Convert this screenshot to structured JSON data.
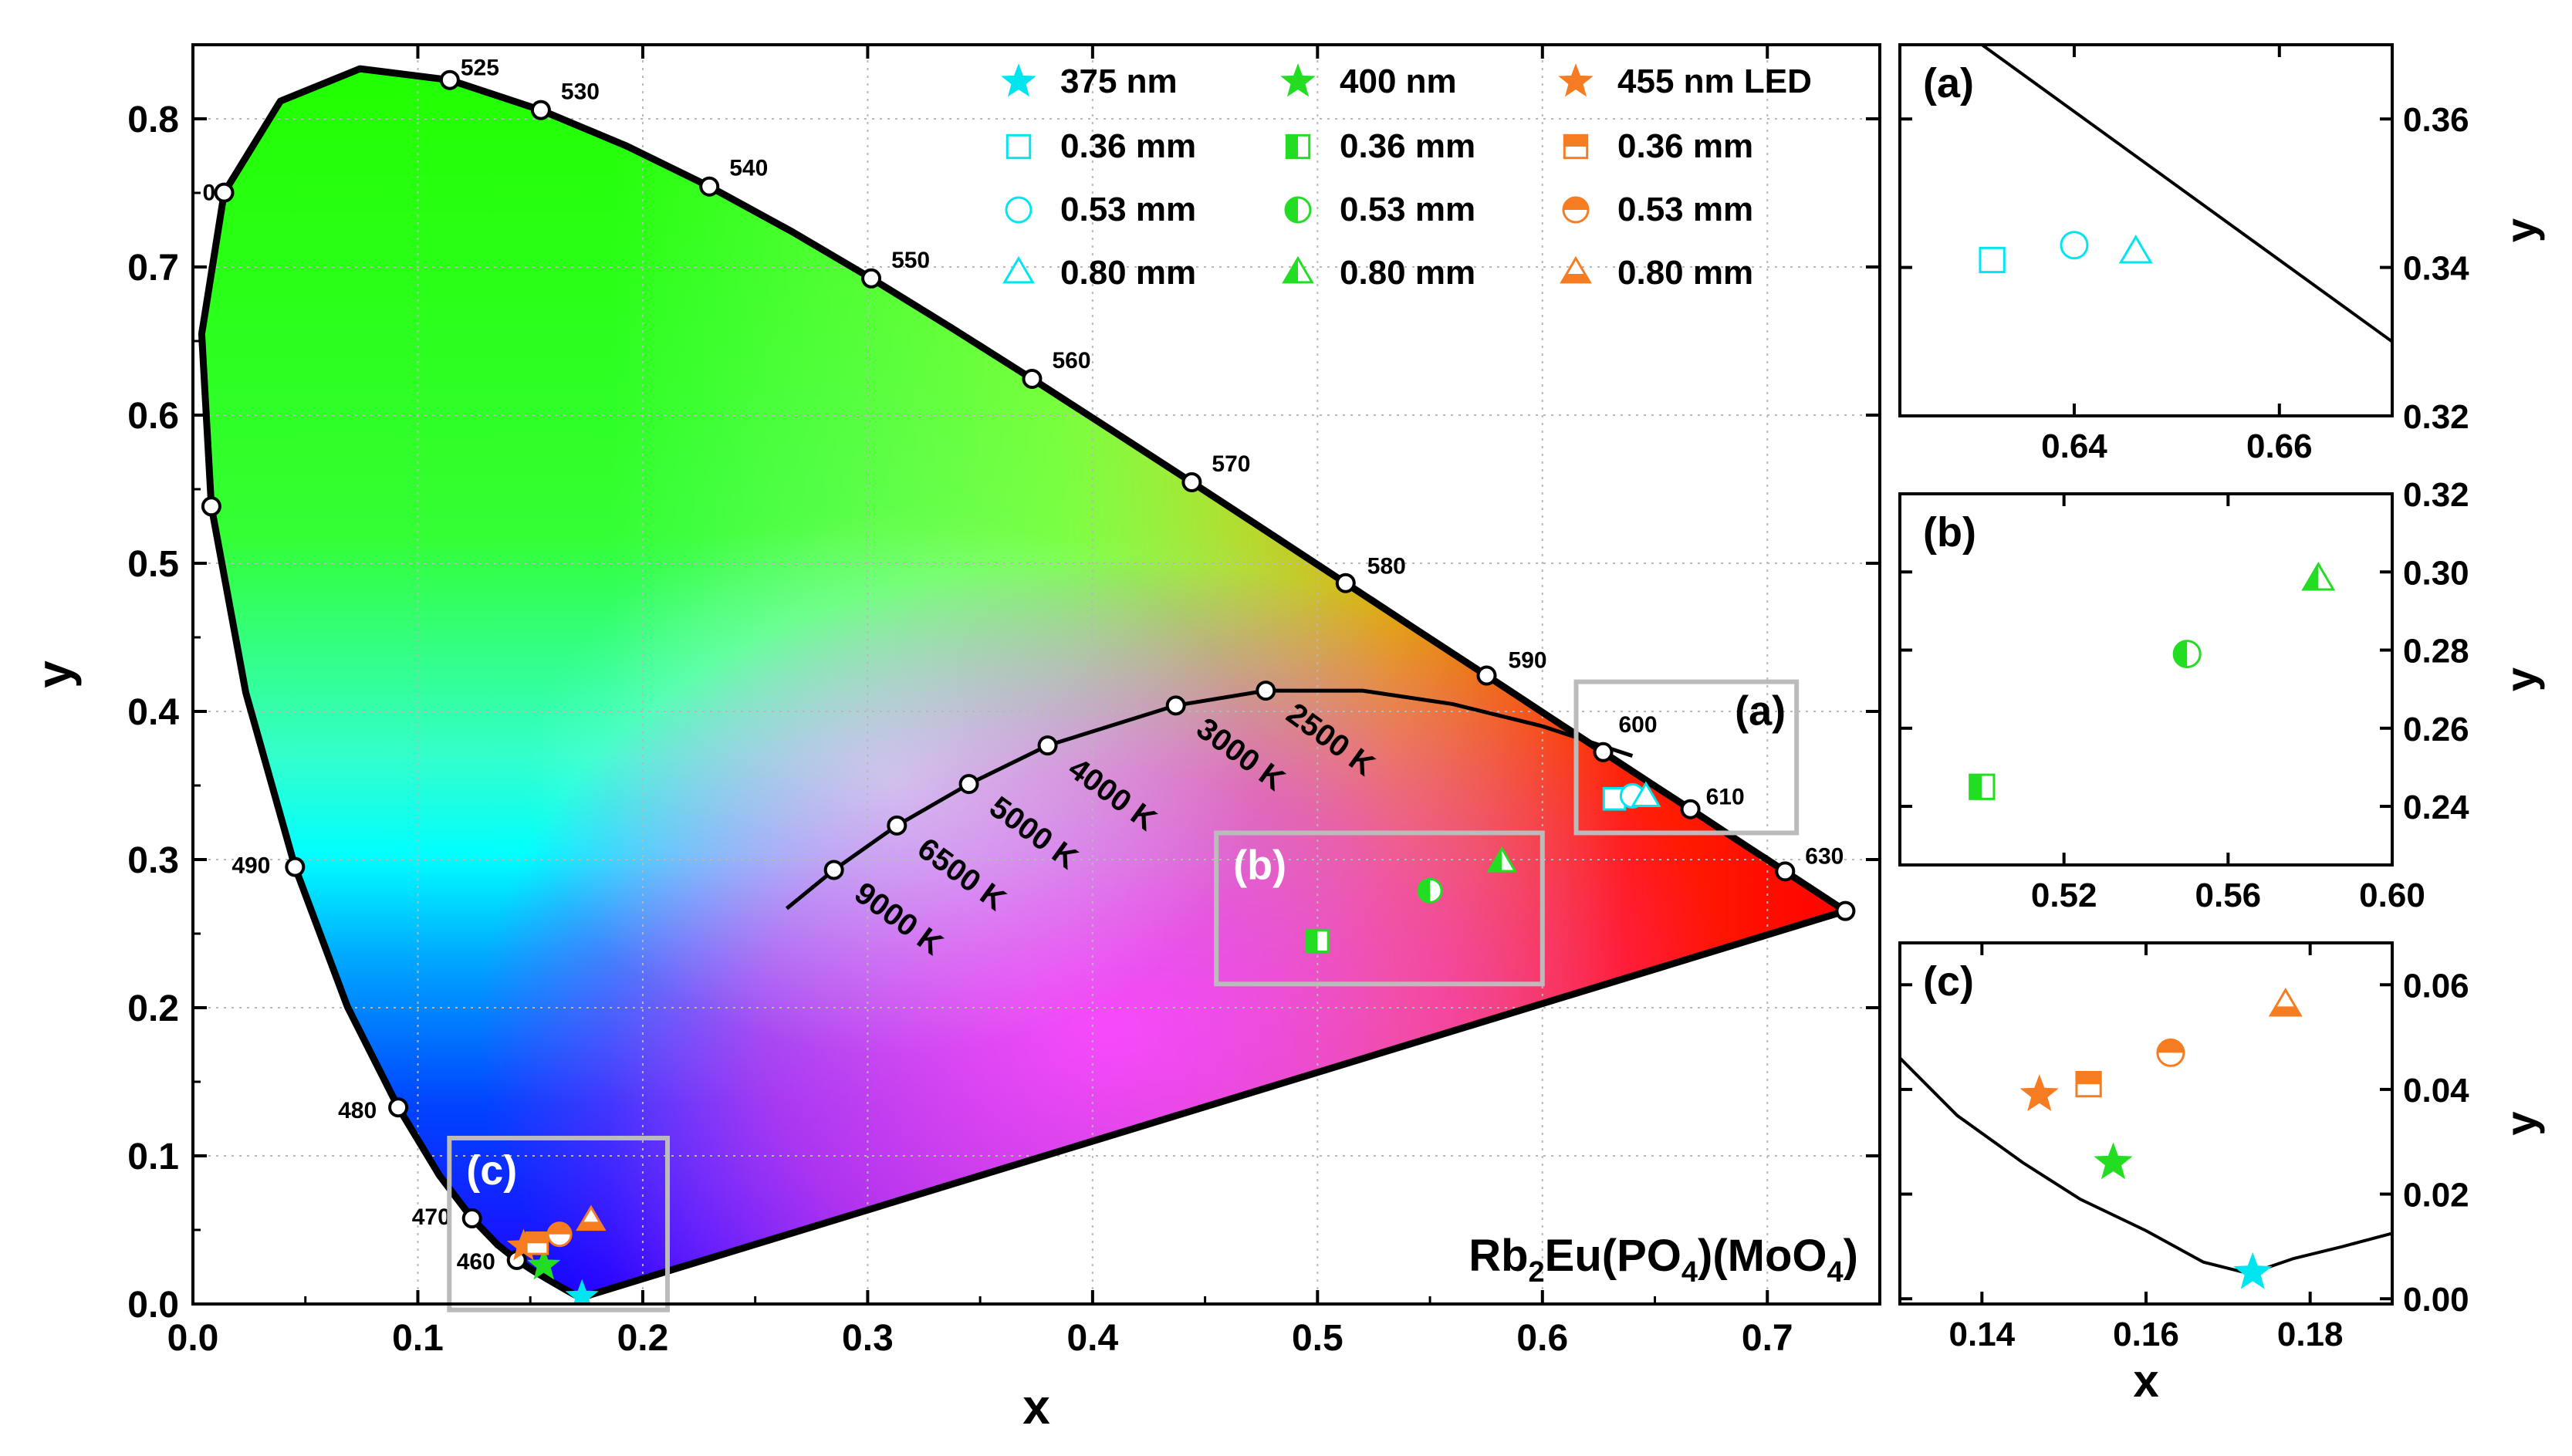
{
  "chart_data": [
    {
      "type": "scatter",
      "panel": "main",
      "subtype": "CIE 1931 chromaticity diagram",
      "title": "",
      "xlabel": "x",
      "ylabel": "y",
      "xlim": [
        0.0,
        0.75
      ],
      "ylim": [
        0.0,
        0.85
      ],
      "xticks": [
        "0.0",
        "0.1",
        "0.2",
        "0.3",
        "0.4",
        "0.5",
        "0.6",
        "0.7"
      ],
      "yticks": [
        "0.0",
        "0.1",
        "0.2",
        "0.3",
        "0.4",
        "0.5",
        "0.6",
        "0.7",
        "0.8"
      ],
      "grid": true,
      "compound_label": {
        "parts": [
          "Rb",
          "2",
          "Eu(PO",
          "4",
          ")(MoO",
          "4",
          ")"
        ]
      },
      "colors": {
        "cyan": "#00e5f0",
        "green": "#22dd22",
        "orange": "#f57c20",
        "frame": "#bbbbbb"
      },
      "spectral_locus": [
        [
          0.1741,
          0.005
        ],
        [
          0.1726,
          0.0048
        ],
        [
          0.1703,
          0.0058
        ],
        [
          0.1666,
          0.0089
        ],
        [
          0.1609,
          0.0138
        ],
        [
          0.151,
          0.0227
        ],
        [
          0.144,
          0.0297
        ],
        [
          0.1355,
          0.0399
        ],
        [
          0.1241,
          0.0578
        ],
        [
          0.1096,
          0.0868
        ],
        [
          0.0913,
          0.1327
        ],
        [
          0.0687,
          0.2007
        ],
        [
          0.0454,
          0.295
        ],
        [
          0.0235,
          0.4127
        ],
        [
          0.0082,
          0.5384
        ],
        [
          0.0039,
          0.6548
        ],
        [
          0.0139,
          0.7502
        ],
        [
          0.0389,
          0.812
        ],
        [
          0.0743,
          0.8338
        ],
        [
          0.1142,
          0.8262
        ],
        [
          0.1547,
          0.8059
        ],
        [
          0.1929,
          0.7816
        ],
        [
          0.2296,
          0.7543
        ],
        [
          0.2658,
          0.7243
        ],
        [
          0.3016,
          0.6923
        ],
        [
          0.3373,
          0.6589
        ],
        [
          0.3731,
          0.6245
        ],
        [
          0.4087,
          0.5896
        ],
        [
          0.4441,
          0.5547
        ],
        [
          0.4788,
          0.5202
        ],
        [
          0.5125,
          0.4866
        ],
        [
          0.5448,
          0.4544
        ],
        [
          0.5752,
          0.4242
        ],
        [
          0.6029,
          0.3965
        ],
        [
          0.627,
          0.3725
        ],
        [
          0.6482,
          0.3514
        ],
        [
          0.6658,
          0.334
        ],
        [
          0.6801,
          0.3197
        ],
        [
          0.6915,
          0.3083
        ],
        [
          0.7006,
          0.2993
        ],
        [
          0.7079,
          0.292
        ],
        [
          0.7347,
          0.2653
        ]
      ],
      "wavelength_markers": [
        {
          "label": "460",
          "x": 0.144,
          "y": 0.0297
        },
        {
          "label": "470",
          "x": 0.1241,
          "y": 0.0578
        },
        {
          "label": "480",
          "x": 0.0913,
          "y": 0.1327
        },
        {
          "label": "490",
          "x": 0.0454,
          "y": 0.295
        },
        {
          "label": "",
          "x": 0.0082,
          "y": 0.5384
        },
        {
          "label": "0",
          "x": 0.0139,
          "y": 0.7502
        },
        {
          "label": "525",
          "x": 0.1142,
          "y": 0.8262
        },
        {
          "label": "530",
          "x": 0.1547,
          "y": 0.8059
        },
        {
          "label": "540",
          "x": 0.2296,
          "y": 0.7543
        },
        {
          "label": "550",
          "x": 0.3016,
          "y": 0.6923
        },
        {
          "label": "560",
          "x": 0.3731,
          "y": 0.6245
        },
        {
          "label": "570",
          "x": 0.4441,
          "y": 0.5547
        },
        {
          "label": "580",
          "x": 0.5125,
          "y": 0.4866
        },
        {
          "label": "590",
          "x": 0.5752,
          "y": 0.4242
        },
        {
          "label": "600",
          "x": 0.627,
          "y": 0.3725
        },
        {
          "label": "610",
          "x": 0.6658,
          "y": 0.334
        },
        {
          "label": "630",
          "x": 0.7079,
          "y": 0.292
        },
        {
          "label": "",
          "x": 0.7347,
          "y": 0.2653
        }
      ],
      "planckian_locus": [
        [
          0.264,
          0.267
        ],
        [
          0.285,
          0.293
        ],
        [
          0.313,
          0.323
        ],
        [
          0.345,
          0.351
        ],
        [
          0.38,
          0.377
        ],
        [
          0.437,
          0.404
        ],
        [
          0.477,
          0.414
        ],
        [
          0.52,
          0.414
        ],
        [
          0.56,
          0.405
        ],
        [
          0.6,
          0.39
        ],
        [
          0.64,
          0.37
        ]
      ],
      "cct_markers": [
        {
          "label": "9000 K",
          "x": 0.285,
          "y": 0.293
        },
        {
          "label": "6500 K",
          "x": 0.313,
          "y": 0.323
        },
        {
          "label": "5000 K",
          "x": 0.345,
          "y": 0.351
        },
        {
          "label": "4000 K",
          "x": 0.38,
          "y": 0.377
        },
        {
          "label": "3000 K",
          "x": 0.437,
          "y": 0.404
        },
        {
          "label": "2500 K",
          "x": 0.477,
          "y": 0.414
        }
      ],
      "zoom_boxes": [
        {
          "label": "(a)",
          "x0": 0.615,
          "x1": 0.713,
          "y0": 0.318,
          "y1": 0.42
        },
        {
          "label": "(b)",
          "x0": 0.455,
          "x1": 0.6,
          "y0": 0.216,
          "y1": 0.318
        },
        {
          "label": "(c)",
          "x0": 0.114,
          "x1": 0.211,
          "y0": -0.004,
          "y1": 0.112
        }
      ],
      "legend": {
        "placement": "top-right",
        "columns": [
          {
            "color": "cyan",
            "entries": [
              {
                "label": "375 nm",
                "marker": "star"
              },
              {
                "label": "0.36 mm",
                "marker": "square-open"
              },
              {
                "label": "0.53 mm",
                "marker": "circle-open"
              },
              {
                "label": "0.80 mm",
                "marker": "triangle-open"
              }
            ]
          },
          {
            "color": "green",
            "entries": [
              {
                "label": "400 nm",
                "marker": "star"
              },
              {
                "label": "0.36 mm",
                "marker": "square-half"
              },
              {
                "label": "0.53 mm",
                "marker": "circle-half"
              },
              {
                "label": "0.80 mm",
                "marker": "triangle-half"
              }
            ]
          },
          {
            "color": "orange",
            "entries": [
              {
                "label": "455 nm LED",
                "marker": "star"
              },
              {
                "label": "0.36 mm",
                "marker": "square-half"
              },
              {
                "label": "0.53 mm",
                "marker": "circle-half"
              },
              {
                "label": "0.80 mm",
                "marker": "triangle-half"
              }
            ]
          }
        ]
      },
      "series": [
        {
          "name": "375 nm",
          "color": "cyan",
          "points": [
            {
              "marker": "star",
              "x": 0.173,
              "y": 0.005
            },
            {
              "marker": "square-open",
              "x": 0.632,
              "y": 0.341
            },
            {
              "marker": "circle-open",
              "x": 0.64,
              "y": 0.343
            },
            {
              "marker": "triangle-open",
              "x": 0.646,
              "y": 0.342
            }
          ]
        },
        {
          "name": "400 nm",
          "color": "green",
          "points": [
            {
              "marker": "star",
              "x": 0.156,
              "y": 0.026
            },
            {
              "marker": "square-half",
              "x": 0.5,
              "y": 0.245
            },
            {
              "marker": "circle-half",
              "x": 0.55,
              "y": 0.279
            },
            {
              "marker": "triangle-half",
              "x": 0.582,
              "y": 0.298
            }
          ]
        },
        {
          "name": "455 nm LED",
          "color": "orange",
          "points": [
            {
              "marker": "star",
              "x": 0.147,
              "y": 0.039
            },
            {
              "marker": "square-half",
              "x": 0.153,
              "y": 0.041
            },
            {
              "marker": "circle-half",
              "x": 0.163,
              "y": 0.047
            },
            {
              "marker": "triangle-half",
              "x": 0.177,
              "y": 0.056
            }
          ]
        }
      ]
    },
    {
      "type": "scatter",
      "panel": "a",
      "label": "(a)",
      "xlabel": "",
      "ylabel": "y",
      "xlim": [
        0.623,
        0.671
      ],
      "ylim": [
        0.32,
        0.37
      ],
      "xticks": [
        "0.64",
        "0.66"
      ],
      "yticks": [
        "0.32",
        "0.34",
        "0.36"
      ],
      "locus": [
        [
          0.631,
          0.37
        ],
        [
          0.671,
          0.33
        ]
      ],
      "points": [
        {
          "color": "cyan",
          "marker": "square-open",
          "x": 0.632,
          "y": 0.341
        },
        {
          "color": "cyan",
          "marker": "circle-open",
          "x": 0.64,
          "y": 0.343
        },
        {
          "color": "cyan",
          "marker": "triangle-open",
          "x": 0.646,
          "y": 0.342
        }
      ]
    },
    {
      "type": "scatter",
      "panel": "b",
      "label": "(b)",
      "xlabel": "",
      "ylabel": "y",
      "xlim": [
        0.48,
        0.6
      ],
      "ylim": [
        0.225,
        0.32
      ],
      "xticks": [
        "0.52",
        "0.56",
        "0.60"
      ],
      "yticks": [
        "0.24",
        "0.26",
        "0.28",
        "0.30",
        "0.32"
      ],
      "points": [
        {
          "color": "green",
          "marker": "square-half",
          "x": 0.5,
          "y": 0.245
        },
        {
          "color": "green",
          "marker": "circle-half",
          "x": 0.55,
          "y": 0.279
        },
        {
          "color": "green",
          "marker": "triangle-half",
          "x": 0.582,
          "y": 0.298
        }
      ]
    },
    {
      "type": "scatter",
      "panel": "c",
      "label": "(c)",
      "xlabel": "x",
      "ylabel": "y",
      "xlim": [
        0.13,
        0.19
      ],
      "ylim": [
        -0.001,
        0.068
      ],
      "xticks": [
        "0.14",
        "0.16",
        "0.18"
      ],
      "yticks": [
        "0.00",
        "0.02",
        "0.04",
        "0.06"
      ],
      "locus": [
        [
          0.13,
          0.046
        ],
        [
          0.137,
          0.035
        ],
        [
          0.145,
          0.026
        ],
        [
          0.152,
          0.019
        ],
        [
          0.16,
          0.013
        ],
        [
          0.167,
          0.007
        ],
        [
          0.1726,
          0.0048
        ],
        [
          0.178,
          0.0077
        ],
        [
          0.184,
          0.01
        ],
        [
          0.19,
          0.0125
        ]
      ],
      "points": [
        {
          "color": "cyan",
          "marker": "star",
          "x": 0.173,
          "y": 0.005
        },
        {
          "color": "green",
          "marker": "star",
          "x": 0.156,
          "y": 0.026
        },
        {
          "color": "orange",
          "marker": "star",
          "x": 0.147,
          "y": 0.039
        },
        {
          "color": "orange",
          "marker": "square-half",
          "x": 0.153,
          "y": 0.041
        },
        {
          "color": "orange",
          "marker": "circle-half",
          "x": 0.163,
          "y": 0.047
        },
        {
          "color": "orange",
          "marker": "triangle-half",
          "x": 0.177,
          "y": 0.056
        }
      ]
    }
  ]
}
